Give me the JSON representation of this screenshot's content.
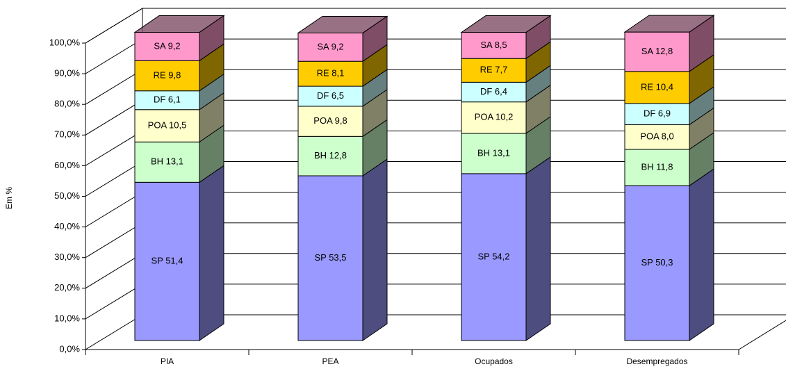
{
  "chart_data": {
    "type": "bar3d_stacked",
    "y_label": "Em %",
    "categories": [
      "PIA",
      "PEA",
      "Ocupados",
      "Desempregados"
    ],
    "series": [
      {
        "name": "SP",
        "color": "#9999ff",
        "side": "#4d4d80",
        "values": [
          51.4,
          53.5,
          54.2,
          50.3
        ],
        "value_labels": [
          "SP 51,4",
          "SP 53,5",
          "SP 54,2",
          "SP 50,3"
        ]
      },
      {
        "name": "BH",
        "color": "#ccffcc",
        "side": "#668066",
        "values": [
          13.1,
          12.8,
          13.1,
          11.8
        ],
        "value_labels": [
          "BH 13,1",
          "BH 12,8",
          "BH 13,1",
          "BH 11,8"
        ]
      },
      {
        "name": "POA",
        "color": "#ffffcc",
        "side": "#808066",
        "values": [
          10.5,
          9.8,
          10.2,
          8.0
        ],
        "value_labels": [
          "POA 10,5",
          "POA 9,8",
          "POA 10,2",
          "POA 8,0"
        ]
      },
      {
        "name": "DF",
        "color": "#ccffff",
        "side": "#668080",
        "values": [
          6.1,
          6.5,
          6.4,
          6.9
        ],
        "value_labels": [
          "DF 6,1",
          "DF 6,5",
          "DF 6,4",
          "DF 6,9"
        ]
      },
      {
        "name": "RE",
        "color": "#ffcc00",
        "side": "#806600",
        "values": [
          9.8,
          8.1,
          7.7,
          10.4
        ],
        "value_labels": [
          "RE 9,8",
          "RE 8,1",
          "RE 7,7",
          "RE 10,4"
        ]
      },
      {
        "name": "SA",
        "color": "#ff99cc",
        "side": "#804d66",
        "values": [
          9.2,
          9.2,
          8.5,
          12.8
        ],
        "value_labels": [
          "SA 9,2",
          "SA 9,2",
          "SA 8,5",
          "SA 12,8"
        ]
      }
    ],
    "ylim": [
      0,
      100
    ],
    "yticks": [
      {
        "value": 0,
        "label": "0,0%"
      },
      {
        "value": 10,
        "label": "10,0%"
      },
      {
        "value": 20,
        "label": "20,0%"
      },
      {
        "value": 30,
        "label": "30,0%"
      },
      {
        "value": 40,
        "label": "40,0%"
      },
      {
        "value": 50,
        "label": "50,0%"
      },
      {
        "value": 60,
        "label": "60,0%"
      },
      {
        "value": 70,
        "label": "70,0%"
      },
      {
        "value": 80,
        "label": "80,0%"
      },
      {
        "value": 90,
        "label": "90,0%"
      },
      {
        "value": 100,
        "label": "100,0%"
      }
    ],
    "grid": true
  }
}
